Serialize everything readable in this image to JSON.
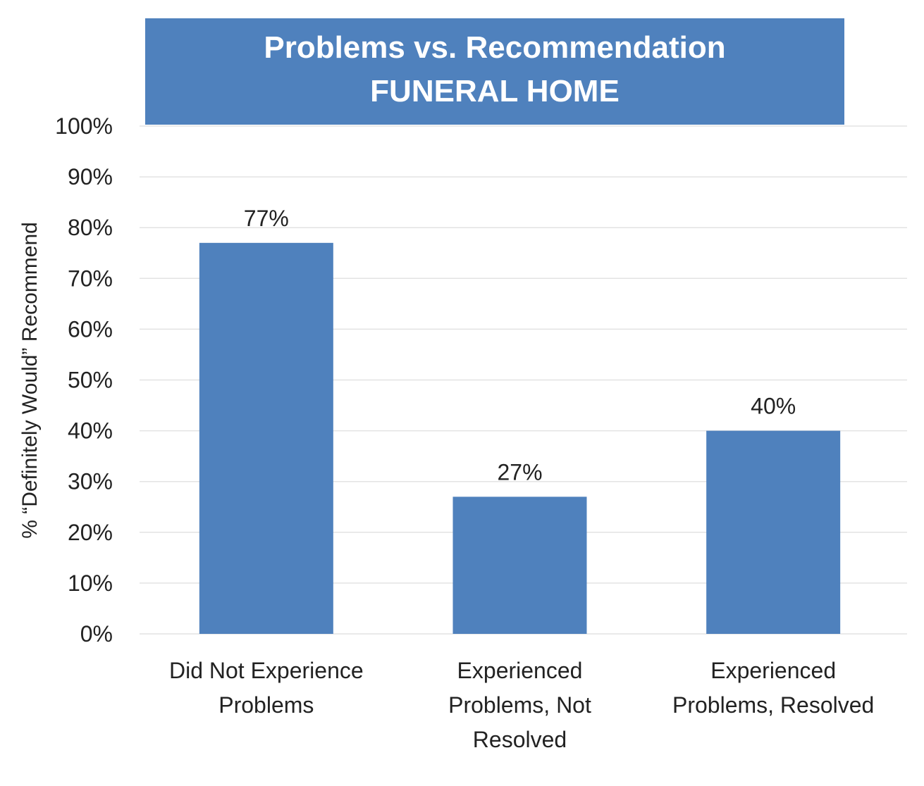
{
  "chart_data": {
    "type": "bar",
    "title": "Problems vs. Recommendation",
    "subtitle": "FUNERAL HOME",
    "ylabel": "% “Definitely Would” Recommend",
    "xlabel": "",
    "categories": [
      [
        "Did Not Experience",
        "Problems"
      ],
      [
        "Experienced",
        "Problems, Not",
        "Resolved"
      ],
      [
        "Experienced",
        "Problems, Resolved"
      ]
    ],
    "values": [
      77,
      27,
      40
    ],
    "data_labels": [
      "77%",
      "27%",
      "40%"
    ],
    "ylim": [
      0,
      100
    ],
    "yticks": [
      0,
      10,
      20,
      30,
      40,
      50,
      60,
      70,
      80,
      90,
      100
    ],
    "ytick_labels": [
      "0%",
      "10%",
      "20%",
      "30%",
      "40%",
      "50%",
      "60%",
      "70%",
      "80%",
      "90%",
      "100%"
    ],
    "grid": true,
    "legend": "none",
    "colors": {
      "bar": "#4F81BD",
      "title_bg": "#4F81BD",
      "title_text": "#FFFFFF",
      "grid": "#E3E3E3",
      "text": "#222222"
    }
  }
}
